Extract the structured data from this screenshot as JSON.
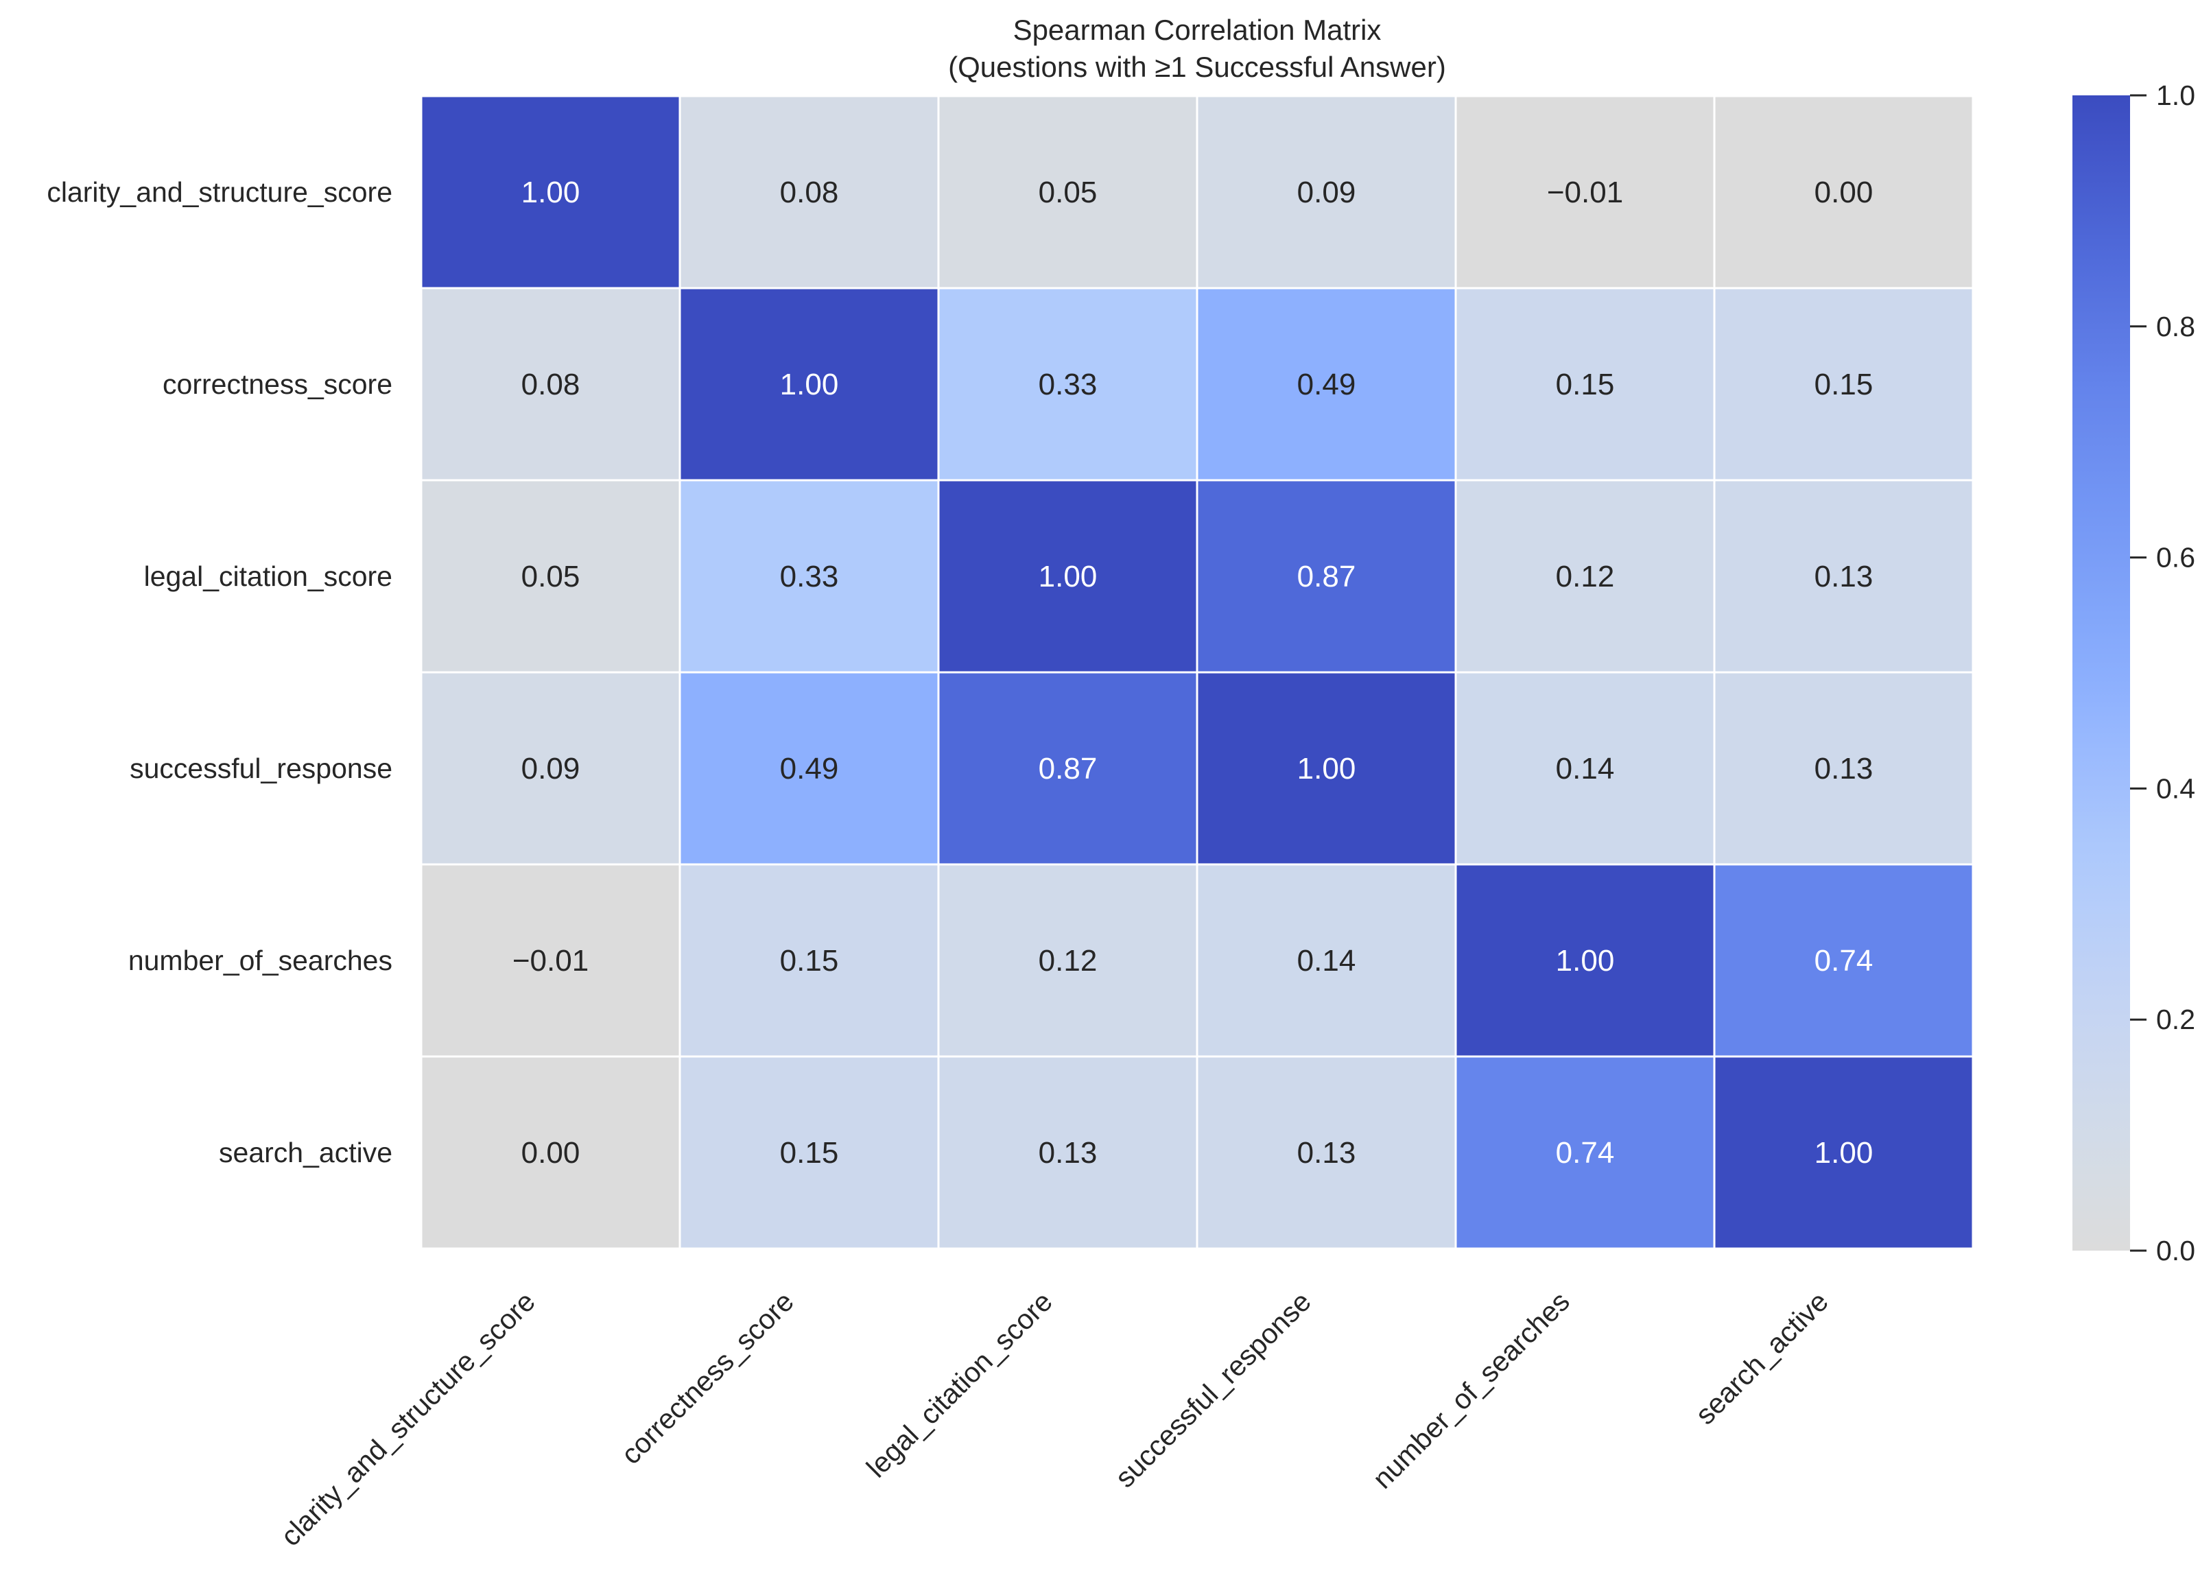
{
  "chart_data": {
    "type": "heatmap",
    "title": "Spearman Correlation Matrix",
    "subtitle": "(Questions with ≥1 Successful Answer)",
    "row_labels": [
      "clarity_and_structure_score",
      "correctness_score",
      "legal_citation_score",
      "successful_response",
      "number_of_searches",
      "search_active"
    ],
    "col_labels": [
      "clarity_and_structure_score",
      "correctness_score",
      "legal_citation_score",
      "successful_response",
      "number_of_searches",
      "search_active"
    ],
    "values": [
      [
        1.0,
        0.08,
        0.05,
        0.09,
        -0.01,
        0.0
      ],
      [
        0.08,
        1.0,
        0.33,
        0.49,
        0.15,
        0.15
      ],
      [
        0.05,
        0.33,
        1.0,
        0.87,
        0.12,
        0.13
      ],
      [
        0.09,
        0.49,
        0.87,
        1.0,
        0.14,
        0.13
      ],
      [
        -0.01,
        0.15,
        0.12,
        0.14,
        1.0,
        0.74
      ],
      [
        0.0,
        0.15,
        0.13,
        0.13,
        0.74,
        1.0
      ]
    ],
    "annotation_format": "0.00",
    "colorbar": {
      "range": [
        0.0,
        1.0
      ],
      "ticks": [
        "0.0",
        "0.2",
        "0.4",
        "0.6",
        "0.8",
        "1.0"
      ],
      "colors": {
        "low": "#dcdcdc",
        "high": "#3b4cc0"
      }
    }
  }
}
